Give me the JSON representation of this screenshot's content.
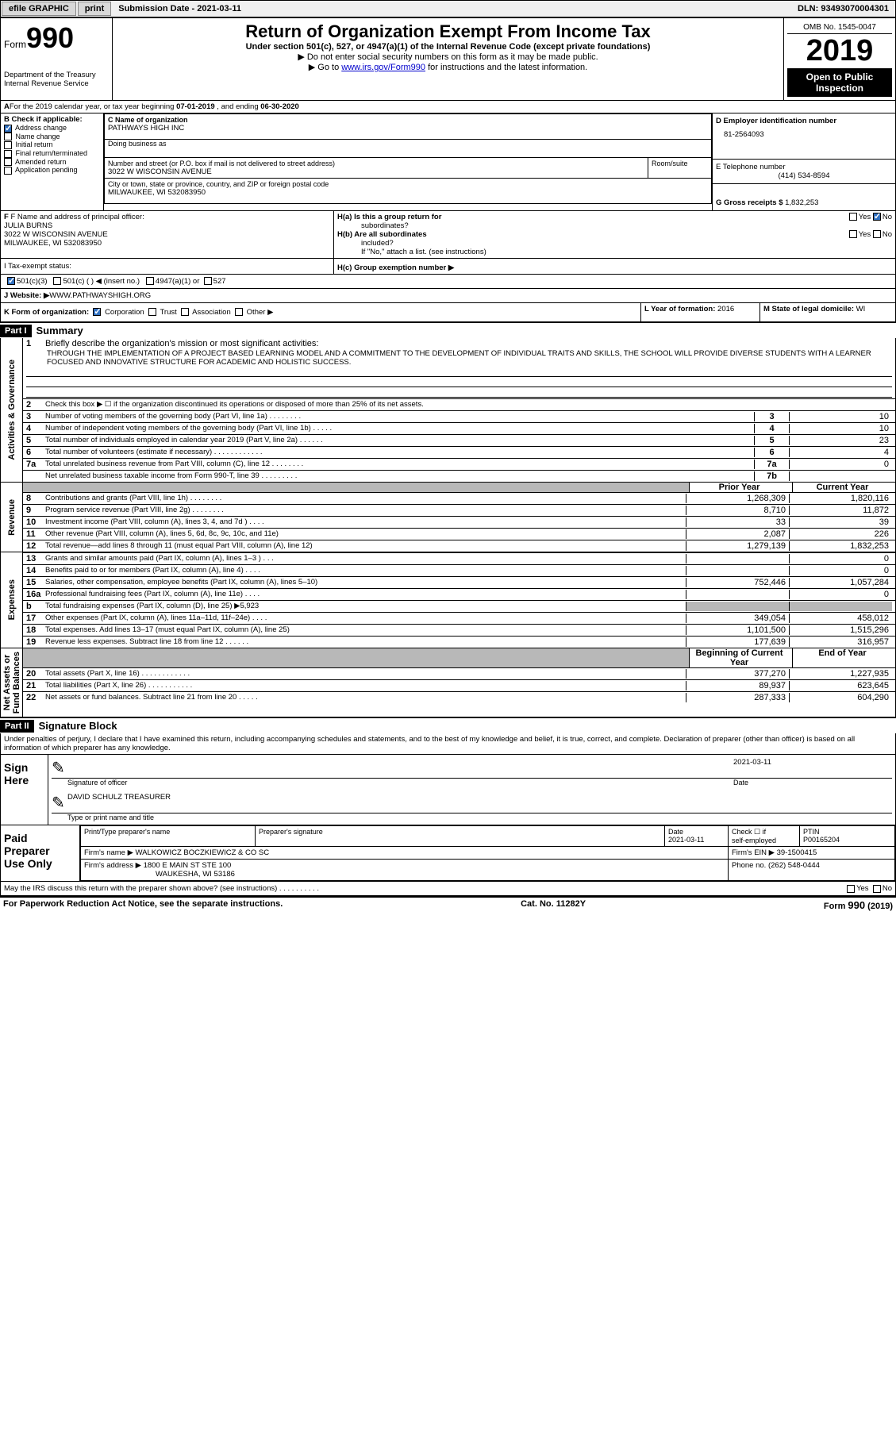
{
  "topbar": {
    "efile": "efile GRAPHIC",
    "print": "print",
    "subdate_label": "Submission Date - ",
    "subdate": "2021-03-11",
    "dln_label": "DLN: ",
    "dln": "93493070004301"
  },
  "header": {
    "form": "Form",
    "num": "990",
    "dept": "Department of the Treasury",
    "irs": "Internal Revenue Service",
    "title": "Return of Organization Exempt From Income Tax",
    "sub": "Under section 501(c), 527, or 4947(a)(1) of the Internal Revenue Code (except private foundations)",
    "arrow1": "▶ Do not enter social security numbers on this form as it may be made public.",
    "arrow2_pre": "▶ Go to ",
    "arrow2_link": "www.irs.gov/Form990",
    "arrow2_post": " for instructions and the latest information.",
    "omb": "OMB No. 1545-0047",
    "year": "2019",
    "pub1": "Open to Public",
    "pub2": "Inspection"
  },
  "A": {
    "text_pre": "For the 2019 calendar year, or tax year beginning ",
    "begin": "07-01-2019",
    "mid": " , and ending ",
    "end": "06-30-2020"
  },
  "B": {
    "hdr": "B Check if applicable:",
    "items": [
      {
        "label": "Address change",
        "checked": true
      },
      {
        "label": "Name change",
        "checked": false
      },
      {
        "label": "Initial return",
        "checked": false
      },
      {
        "label": "Final return/terminated",
        "checked": false
      },
      {
        "label": "Amended return",
        "checked": false
      },
      {
        "label": "Application pending",
        "checked": false
      }
    ]
  },
  "C": {
    "label": "C Name of organization",
    "name": "PATHWAYS HIGH INC",
    "dba_label": "Doing business as",
    "dba": "",
    "addr_label": "Number and street (or P.O. box if mail is not delivered to street address)",
    "room_label": "Room/suite",
    "addr": "3022 W WISCONSIN AVENUE",
    "city_label": "City or town, state or province, country, and ZIP or foreign postal code",
    "city": "MILWAUKEE, WI  532083950"
  },
  "D": {
    "label": "D Employer identification number",
    "val": "81-2564093"
  },
  "E": {
    "label": "E Telephone number",
    "val": "(414) 534-8594"
  },
  "G": {
    "label": "G Gross receipts $",
    "val": "1,832,253"
  },
  "F": {
    "label": "F  Name and address of principal officer:",
    "name": "JULIA BURNS",
    "addr1": "3022 W WISCONSIN AVENUE",
    "addr2": "MILWAUKEE, WI  532083950"
  },
  "H": {
    "a_label": "H(a)  Is this a group return for",
    "a_sub": "subordinates?",
    "yes": "Yes",
    "no": "No",
    "b_label": "H(b)  Are all subordinates",
    "b_sub": "included?",
    "b_note": "If \"No,\" attach a list. (see instructions)",
    "c_label": "H(c)  Group exemption number ▶"
  },
  "I": {
    "label": "I   Tax-exempt status:",
    "o1": "501(c)(3)",
    "o2": "501(c) (   ) ◀ (insert no.)",
    "o3": "4947(a)(1) or",
    "o4": "527"
  },
  "J": {
    "label": "J   Website: ▶",
    "val": " WWW.PATHWAYSHIGH.ORG"
  },
  "K": {
    "label": "K Form of organization:",
    "o1": "Corporation",
    "o2": "Trust",
    "o3": "Association",
    "o4": "Other ▶"
  },
  "L": {
    "label": "L Year of formation: ",
    "val": "2016"
  },
  "M": {
    "label": "M State of legal domicile: ",
    "val": "WI"
  },
  "parts": {
    "p1": "Part I",
    "p1t": "Summary",
    "p2": "Part II",
    "p2t": "Signature Block"
  },
  "summary": {
    "l1": "Briefly describe the organization's mission or most significant activities:",
    "mission": "THROUGH THE IMPLEMENTATION OF A PROJECT BASED LEARNING MODEL AND A COMMITMENT TO THE DEVELOPMENT OF INDIVIDUAL TRAITS AND SKILLS, THE SCHOOL WILL PROVIDE DIVERSE STUDENTS WITH A LEARNER FOCUSED AND INNOVATIVE STRUCTURE FOR ACADEMIC AND HOLISTIC SUCCESS.",
    "l2": "Check this box ▶ ☐  if the organization discontinued its operations or disposed of more than 25% of its net assets.",
    "govlines": [
      {
        "n": "3",
        "t": "Number of voting members of the governing body (Part VI, line 1a)  .    .    .    .    .    .    .    .",
        "b": "3",
        "v": "10"
      },
      {
        "n": "4",
        "t": "Number of independent voting members of the governing body (Part VI, line 1b)  .    .    .    .    .",
        "b": "4",
        "v": "10"
      },
      {
        "n": "5",
        "t": "Total number of individuals employed in calendar year 2019 (Part V, line 2a)  .    .    .    .    .    .",
        "b": "5",
        "v": "23"
      },
      {
        "n": "6",
        "t": "Total number of volunteers (estimate if necessary)  .    .    .    .    .    .    .    .    .    .    .    .",
        "b": "6",
        "v": "4"
      },
      {
        "n": "7a",
        "t": "Total unrelated business revenue from Part VIII, column (C), line 12  .    .    .    .    .    .    .    .",
        "b": "7a",
        "v": "0"
      },
      {
        "n": "",
        "t": "Net unrelated business taxable income from Form 990-T, line 39  .    .    .    .    .    .    .    .    .",
        "b": "7b",
        "v": ""
      }
    ],
    "colhdr": {
      "prior": "Prior Year",
      "curr": "Current Year",
      "bcy": "Beginning of Current Year",
      "eoy": "End of Year"
    },
    "revenue": [
      {
        "n": "8",
        "t": "Contributions and grants (Part VIII, line 1h)  .    .    .    .    .    .    .    .",
        "p": "1,268,309",
        "c": "1,820,116"
      },
      {
        "n": "9",
        "t": "Program service revenue (Part VIII, line 2g)  .    .    .    .    .    .    .    .",
        "p": "8,710",
        "c": "11,872"
      },
      {
        "n": "10",
        "t": "Investment income (Part VIII, column (A), lines 3, 4, and 7d )  .    .    .    .",
        "p": "33",
        "c": "39"
      },
      {
        "n": "11",
        "t": "Other revenue (Part VIII, column (A), lines 5, 6d, 8c, 9c, 10c, and 11e)",
        "p": "2,087",
        "c": "226"
      },
      {
        "n": "12",
        "t": "Total revenue—add lines 8 through 11 (must equal Part VIII, column (A), line 12)",
        "p": "1,279,139",
        "c": "1,832,253"
      }
    ],
    "expenses": [
      {
        "n": "13",
        "t": "Grants and similar amounts paid (Part IX, column (A), lines 1–3 )  .    .    .",
        "p": "",
        "c": "0"
      },
      {
        "n": "14",
        "t": "Benefits paid to or for members (Part IX, column (A), line 4)  .    .    .    .",
        "p": "",
        "c": "0"
      },
      {
        "n": "15",
        "t": "Salaries, other compensation, employee benefits (Part IX, column (A), lines 5–10)",
        "p": "752,446",
        "c": "1,057,284"
      },
      {
        "n": "16a",
        "t": "Professional fundraising fees (Part IX, column (A), line 11e)  .    .    .    .",
        "p": "",
        "c": "0"
      },
      {
        "n": "b",
        "t": "Total fundraising expenses (Part IX, column (D), line 25) ▶5,923",
        "p": "grey",
        "c": "grey"
      },
      {
        "n": "17",
        "t": "Other expenses (Part IX, column (A), lines 11a–11d, 11f–24e)  .    .    .    .",
        "p": "349,054",
        "c": "458,012"
      },
      {
        "n": "18",
        "t": "Total expenses. Add lines 13–17 (must equal Part IX, column (A), line 25)",
        "p": "1,101,500",
        "c": "1,515,296"
      },
      {
        "n": "19",
        "t": "Revenue less expenses. Subtract line 18 from line 12  .    .    .    .    .    .",
        "p": "177,639",
        "c": "316,957"
      }
    ],
    "netassets": [
      {
        "n": "20",
        "t": "Total assets (Part X, line 16)  .    .    .    .    .    .    .    .    .    .    .    .",
        "p": "377,270",
        "c": "1,227,935"
      },
      {
        "n": "21",
        "t": "Total liabilities (Part X, line 26)  .    .    .    .    .    .    .    .    .    .    .",
        "p": "89,937",
        "c": "623,645"
      },
      {
        "n": "22",
        "t": "Net assets or fund balances. Subtract line 21 from line 20  .    .    .    .    .",
        "p": "287,333",
        "c": "604,290"
      }
    ],
    "sides": {
      "gov": "Activities & Governance",
      "rev": "Revenue",
      "exp": "Expenses",
      "net": "Net Assets or\nFund Balances"
    }
  },
  "sig": {
    "perjury": "Under penalties of perjury, I declare that I have examined this return, including accompanying schedules and statements, and to the best of my knowledge and belief, it is true, correct, and complete. Declaration of preparer (other than officer) is based on all information of which preparer has any knowledge.",
    "sign_here": "Sign\nHere",
    "date": "2021-03-11",
    "sig_officer": "Signature of officer",
    "date_label": "Date",
    "name": "DAVID SCHULZ TREASURER",
    "name_label": "Type or print name and title",
    "paid": "Paid\nPreparer\nUse Only",
    "prep_name_label": "Print/Type preparer's name",
    "prep_sig_label": "Preparer's signature",
    "prep_date": "2021-03-11",
    "check_label": "Check ☐ if",
    "self": "self-employed",
    "ptin_label": "PTIN",
    "ptin": "P00165204",
    "firm_name_label": "Firm's name    ▶",
    "firm_name": "WALKOWICZ BOCZKIEWICZ & CO SC",
    "firm_ein_label": "Firm's EIN ▶",
    "firm_ein": "39-1500415",
    "firm_addr_label": "Firm's address ▶",
    "firm_addr1": "1800 E MAIN ST STE 100",
    "firm_addr2": "WAUKESHA, WI  53186",
    "phone_label": "Phone no. ",
    "phone": "(262) 548-0444",
    "discuss": "May the IRS discuss this return with the preparer shown above? (see instructions)  .    .    .    .    .    .    .    .    .    .",
    "yes": "Yes",
    "no": "No"
  },
  "footer": {
    "l": "For Paperwork Reduction Act Notice, see the separate instructions.",
    "m": "Cat. No. 11282Y",
    "r": "Form 990 (2019)"
  }
}
